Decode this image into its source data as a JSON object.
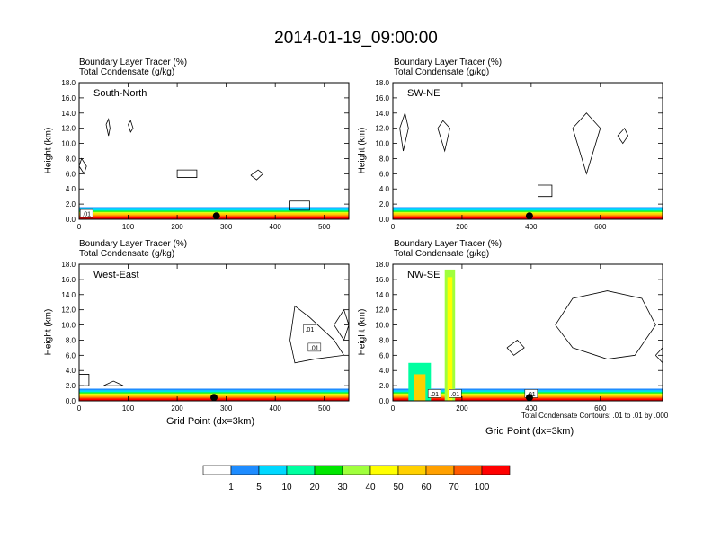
{
  "figure": {
    "title": "2014-01-19_09:00:00",
    "field_line1": "Boundary Layer Tracer   (%)",
    "field_line2": "Total Condensate   (g/kg)",
    "ylabel": "Height (km)",
    "xlabel": "Grid Point (dx=3km)",
    "contour_note": "Total Condensate Contours: .01 to .01 by .000"
  },
  "colorbar": {
    "colors": [
      "#ffffff",
      "#1e8cff",
      "#00d8ff",
      "#00ffa0",
      "#00e600",
      "#a0ff3c",
      "#ffff00",
      "#ffd000",
      "#ffa000",
      "#ff5a00",
      "#ff0000"
    ],
    "labels": [
      "1",
      "5",
      "10",
      "20",
      "30",
      "40",
      "50",
      "60",
      "70",
      "100"
    ]
  },
  "chart_data": [
    {
      "type": "heatmap",
      "panel_label": "South-North",
      "ylim": [
        0,
        18
      ],
      "yticks": [
        "0.0",
        "2.0",
        "4.0",
        "6.0",
        "8.0",
        "10.0",
        "12.0",
        "14.0",
        "16.0",
        "18.0"
      ],
      "xlim": [
        0,
        550
      ],
      "xticks": [
        0,
        100,
        200,
        300,
        400,
        500
      ],
      "marker_x": 280,
      "contour_labels": [
        ".01"
      ]
    },
    {
      "type": "heatmap",
      "panel_label": "SW-NE",
      "ylim": [
        0,
        18
      ],
      "yticks": [
        "0.0",
        "2.0",
        "4.0",
        "6.0",
        "8.0",
        "10.0",
        "12.0",
        "14.0",
        "16.0",
        "18.0"
      ],
      "xlim": [
        0,
        780
      ],
      "xticks": [
        0,
        200,
        400,
        600
      ],
      "marker_x": 395,
      "contour_labels": []
    },
    {
      "type": "heatmap",
      "panel_label": "West-East",
      "ylim": [
        0,
        18
      ],
      "yticks": [
        "0.0",
        "2.0",
        "4.0",
        "6.0",
        "8.0",
        "10.0",
        "12.0",
        "14.0",
        "16.0",
        "18.0"
      ],
      "xlim": [
        0,
        550
      ],
      "xticks": [
        0,
        100,
        200,
        300,
        400,
        500
      ],
      "marker_x": 275,
      "contour_labels": [
        ".01",
        ".01"
      ]
    },
    {
      "type": "heatmap",
      "panel_label": "NW-SE",
      "ylim": [
        0,
        18
      ],
      "yticks": [
        "0.0",
        "2.0",
        "4.0",
        "6.0",
        "8.0",
        "10.0",
        "12.0",
        "14.0",
        "16.0",
        "18.0"
      ],
      "xlim": [
        0,
        780
      ],
      "xticks": [
        0,
        200,
        400,
        600
      ],
      "marker_x": 395,
      "contour_labels": [
        ".01",
        ".01",
        ".01"
      ]
    }
  ]
}
